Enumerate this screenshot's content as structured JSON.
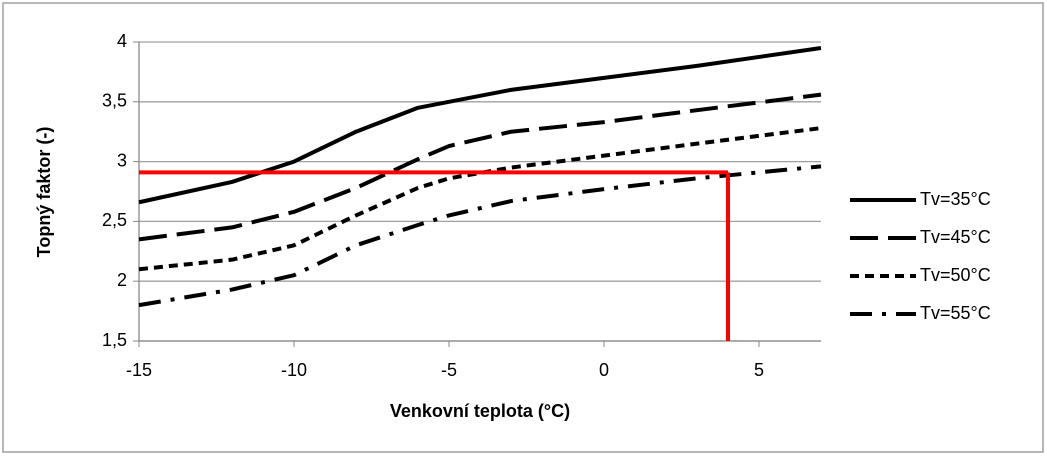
{
  "chart_data": {
    "type": "line",
    "x_label": "Venkovní teplota (°C)",
    "y_label": "Topný faktor (-)",
    "x": [
      -15,
      -12,
      -10,
      -8,
      -6,
      -5,
      -3,
      0,
      3,
      7
    ],
    "series": [
      {
        "name": "Tv=35°C",
        "color": "#000000",
        "dash": "solid",
        "values": [
          2.66,
          2.83,
          3.0,
          3.25,
          3.45,
          3.5,
          3.6,
          3.7,
          3.8,
          3.95
        ]
      },
      {
        "name": "Tv=45°C",
        "color": "#000000",
        "dash": "long-dash",
        "values": [
          2.35,
          2.45,
          2.58,
          2.78,
          3.02,
          3.13,
          3.25,
          3.33,
          3.43,
          3.56
        ]
      },
      {
        "name": "Tv=50°C",
        "color": "#000000",
        "dash": "dash",
        "values": [
          2.1,
          2.18,
          2.3,
          2.55,
          2.78,
          2.86,
          2.95,
          3.05,
          3.15,
          3.28
        ]
      },
      {
        "name": "Tv=55°C",
        "color": "#000000",
        "dash": "dash-dot",
        "values": [
          1.8,
          1.93,
          2.05,
          2.3,
          2.47,
          2.55,
          2.67,
          2.77,
          2.86,
          2.96
        ]
      }
    ],
    "reference": {
      "x": 4,
      "y": 2.91,
      "color": "#ff0000"
    },
    "xlim": [
      -15,
      7
    ],
    "ylim": [
      1.5,
      4
    ],
    "xticks": [
      -15,
      -10,
      -5,
      0,
      5
    ],
    "yticks": [
      {
        "value": 1.5,
        "label": "1,5"
      },
      2,
      {
        "value": 2.5,
        "label": "2,5"
      },
      3,
      {
        "value": 3.5,
        "label": "3,5"
      },
      4
    ],
    "grid": true,
    "legend": "right"
  }
}
